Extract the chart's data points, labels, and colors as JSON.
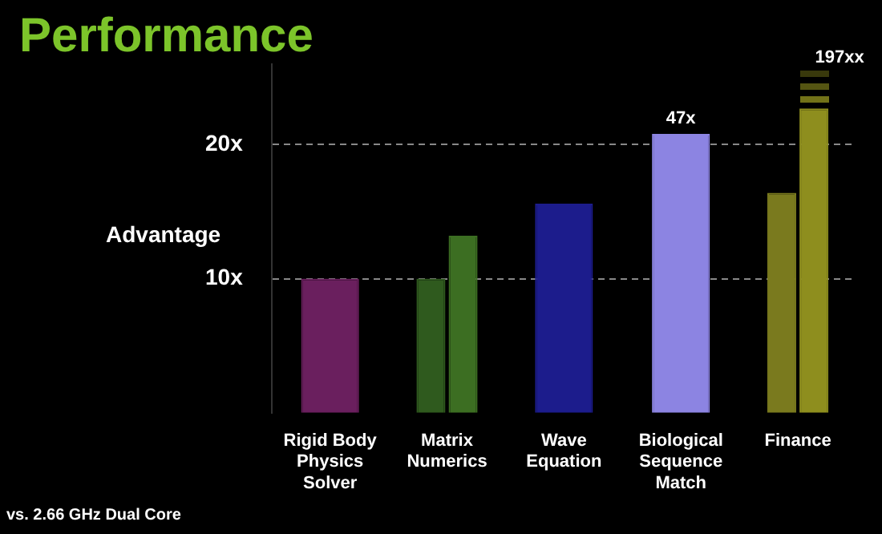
{
  "chart_data": {
    "type": "bar",
    "title": "Performance",
    "ylabel": "Advantage",
    "categories": [
      "Rigid Body\nPhysics\nSolver",
      "Matrix\nNumerics",
      "Wave\nEquation",
      "Biological\nSequence\nMatch",
      "Finance"
    ],
    "series": [
      {
        "colors": [
          "#6a1f5e",
          "#2f5a1e",
          "#1c1c8c",
          "#8c84e2",
          "#7a7a1e"
        ],
        "values": [
          10,
          10,
          15.6,
          20.8,
          16.4
        ]
      },
      {
        "colors": [
          null,
          "#3c6e22",
          null,
          null,
          "#8e8e1e"
        ],
        "values": [
          null,
          13.2,
          null,
          null,
          22.7
        ]
      }
    ],
    "ylim": [
      0,
      26
    ],
    "yticks": [
      {
        "value": 10,
        "label": "10x"
      },
      {
        "value": 20,
        "label": "20x"
      }
    ],
    "grid": "y",
    "line_style": "dashed",
    "annotations": [
      "vs. 2.66 GHz Dual Core",
      {
        "text": "47x",
        "x": "Biological\nSequence\nMatch",
        "y": 20.8
      },
      {
        "text": "197xx",
        "x": "Finance",
        "y": 22.7
      }
    ]
  }
}
